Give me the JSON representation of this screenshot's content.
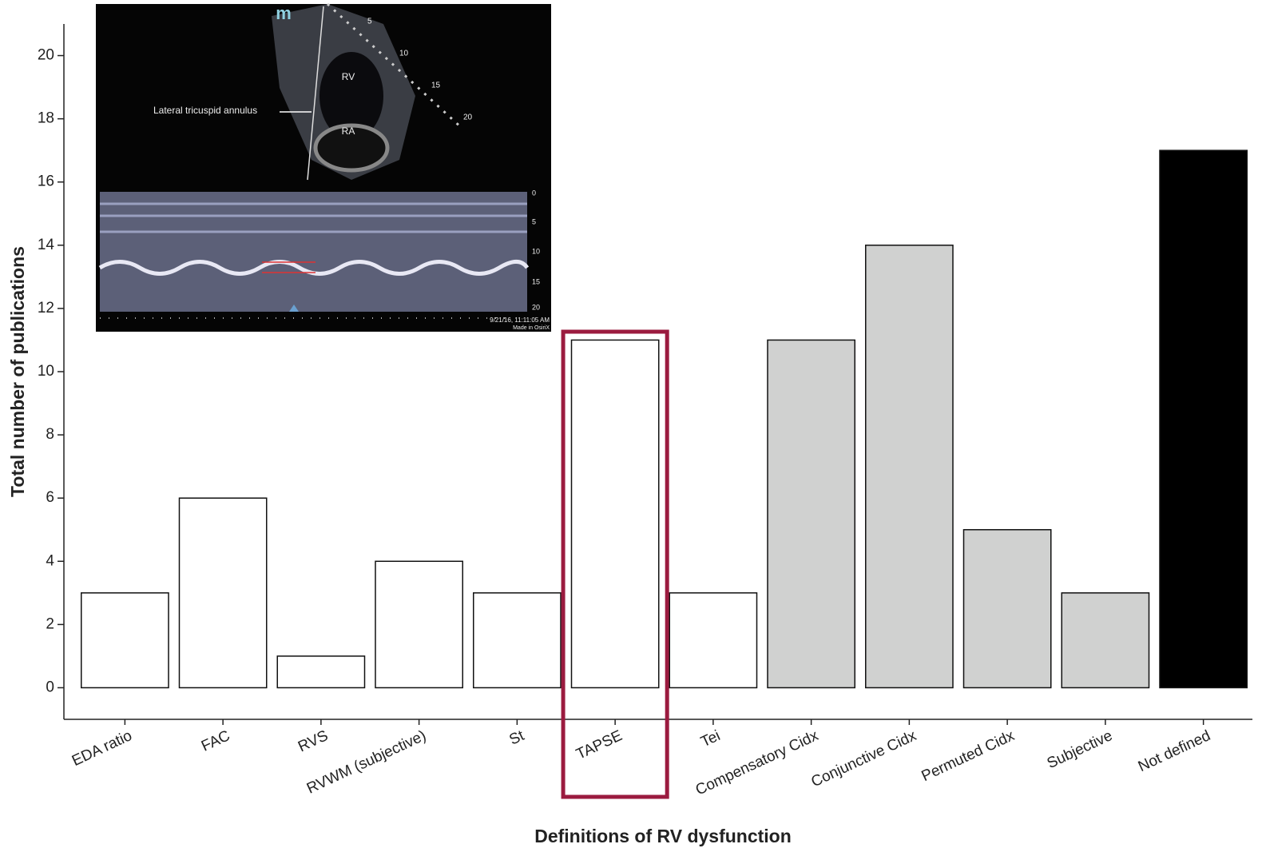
{
  "chart_data": {
    "type": "bar",
    "x_label": "Definitions of RV dysfunction",
    "y_label": "Total number of publications",
    "categories": [
      "EDA ratio",
      "FAC",
      "RVS",
      "RVWM (subjective)",
      "St",
      "TAPSE",
      "Tei",
      "Compensatory Cidx",
      "Conjunctive Cidx",
      "Permuted Cidx",
      "Subjective",
      "Not defined"
    ],
    "values": [
      3,
      6,
      1,
      4,
      3,
      11,
      3,
      11,
      14,
      5,
      3,
      17
    ],
    "colors": [
      "#ffffff",
      "#ffffff",
      "#ffffff",
      "#ffffff",
      "#ffffff",
      "#ffffff",
      "#ffffff",
      "#d0d1d0",
      "#d0d1d0",
      "#d0d1d0",
      "#d0d1d0",
      "#000000"
    ],
    "ylim": [
      -1,
      21
    ],
    "yticks": [
      0,
      2,
      4,
      6,
      8,
      10,
      12,
      14,
      16,
      18,
      20
    ],
    "highlight": "TAPSE",
    "highlight_color": "#9b1b3f"
  },
  "inset": {
    "logo": "m",
    "chamber_labels": [
      "RV",
      "RA"
    ],
    "annotation": "Lateral tricuspid annulus",
    "sector_depths": [
      "5",
      "10",
      "15",
      "20"
    ],
    "mmode_depths": [
      "0",
      "5",
      "10",
      "15",
      "20"
    ],
    "timestamp": "9/21/16, 11:11:05 AM",
    "footer": "Made in OsiriX"
  }
}
